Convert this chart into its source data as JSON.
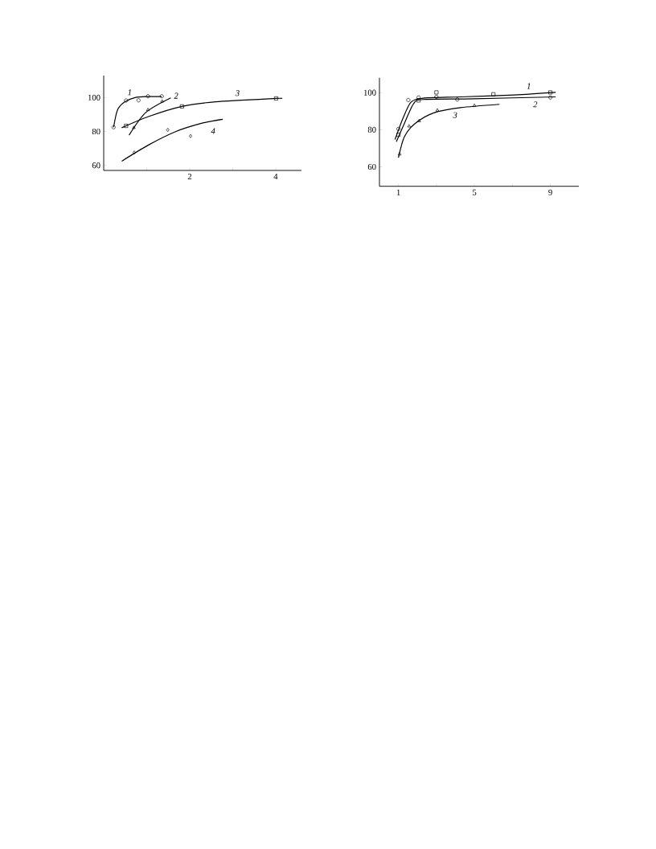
{
  "chart_data": [
    {
      "type": "scatter",
      "xlim": [
        0,
        4.6
      ],
      "ylim": [
        57,
        113
      ],
      "xticks": [
        {
          "value": 1,
          "label": null
        },
        2,
        {
          "value": 3,
          "label": null
        },
        4
      ],
      "yticks": [
        60,
        80,
        100
      ],
      "series": [
        {
          "type": "scatter",
          "marker": "circle",
          "color": "#000000",
          "x": [
            0.23,
            0.52,
            0.81,
            1.03,
            1.35
          ],
          "values": [
            82.5,
            98.3,
            98.4,
            100.8,
            100.8
          ]
        },
        {
          "type": "line",
          "name": "1",
          "marker": "none",
          "color": "#000000",
          "x": [
            0.23,
            0.32,
            0.48,
            0.73,
            1.03,
            1.35
          ],
          "values": [
            82.5,
            92.6,
            97.3,
            100,
            100.6,
            100.6
          ]
        },
        {
          "type": "scatter",
          "marker": "triangle",
          "color": "#000000",
          "x": [
            0.7,
            1.03,
            1.36
          ],
          "values": [
            82.2,
            92.8,
            97.8
          ]
        },
        {
          "type": "line",
          "name": "2",
          "marker": "none",
          "color": "#000000",
          "x": [
            0.59,
            0.98,
            1.56
          ],
          "values": [
            77.8,
            91.2,
            99.8
          ]
        },
        {
          "type": "scatter",
          "marker": "square",
          "color": "#000000",
          "x": [
            0.52,
            1.82,
            4.01
          ],
          "values": [
            83.3,
            94.8,
            99.5
          ]
        },
        {
          "type": "line",
          "name": "3",
          "marker": "none",
          "color": "#000000",
          "x": [
            0.42,
            1.04,
            1.82,
            2.6,
            4.01,
            4.12
          ],
          "values": [
            82.2,
            88.8,
            94.8,
            97.5,
            99.5,
            99.5
          ]
        },
        {
          "type": "scatter",
          "marker": "diamond",
          "color": "#000000",
          "x": [
            0.71,
            1.49,
            2.02
          ],
          "values": [
            67.6,
            80.9,
            77.3
          ]
        },
        {
          "type": "line",
          "name": "4",
          "marker": "none",
          "color": "#000000",
          "x": [
            0.42,
            1.04,
            1.66,
            2.29,
            2.77
          ],
          "values": [
            62.5,
            72.0,
            79.8,
            84.9,
            87.2
          ]
        }
      ]
    },
    {
      "type": "scatter",
      "xlim": [
        0,
        10.5
      ],
      "ylim": [
        49.5,
        108
      ],
      "xticks": [
        1,
        {
          "value": 3,
          "label": null
        },
        5,
        {
          "value": 7,
          "label": null
        },
        9
      ],
      "yticks": [
        60,
        80,
        100
      ],
      "series": [
        {
          "type": "scatter",
          "marker": "square",
          "color": "#000000",
          "x": [
            1,
            2.06,
            3,
            6.0,
            9
          ],
          "values": [
            77.3,
            95.8,
            100.1,
            99.1,
            100.1
          ]
        },
        {
          "type": "line",
          "name": "1",
          "marker": "none",
          "color": "#000000",
          "x": [
            0.82,
            1.24,
            1.66,
            2.3,
            4.27,
            7.1,
            9.28
          ],
          "values": [
            74.7,
            86.2,
            94.8,
            97.0,
            97.7,
            98.7,
            100.1
          ]
        },
        {
          "type": "scatter",
          "marker": "circle",
          "color": "#000000",
          "x": [
            1,
            1.52,
            2.06,
            3,
            4.1,
            9
          ],
          "values": [
            80.4,
            96.0,
            97.4,
            97.7,
            96.3,
            97.4
          ]
        },
        {
          "type": "line",
          "name": "2",
          "marker": "none",
          "color": "#000000",
          "x": [
            0.89,
            1.31,
            1.8,
            2.3,
            4.98,
            9.28
          ],
          "values": [
            73.5,
            83.3,
            94.1,
            96.3,
            96.7,
            97.7
          ]
        },
        {
          "type": "scatter",
          "marker": "triangle",
          "color": "#000000",
          "x": [
            1.06,
            1.56,
            2.09,
            3.05,
            5.0
          ],
          "values": [
            66.8,
            81.9,
            84.7,
            90.5,
            93.0
          ]
        },
        {
          "type": "line",
          "name": "3",
          "marker": "none",
          "color": "#000000",
          "x": [
            1.0,
            1.31,
            1.87,
            2.86,
            4.27,
            6.32
          ],
          "values": [
            64.9,
            76.1,
            83.3,
            89.1,
            91.9,
            93.7
          ]
        }
      ]
    }
  ]
}
